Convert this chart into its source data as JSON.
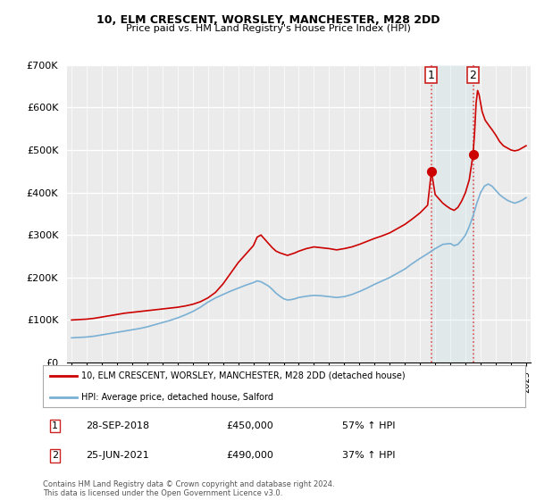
{
  "title_line1": "10, ELM CRESCENT, WORSLEY, MANCHESTER, M28 2DD",
  "title_line2": "Price paid vs. HM Land Registry's House Price Index (HPI)",
  "ylim": [
    0,
    700000
  ],
  "yticks": [
    0,
    100000,
    200000,
    300000,
    400000,
    500000,
    600000,
    700000
  ],
  "ytick_labels": [
    "£0",
    "£100K",
    "£200K",
    "£300K",
    "£400K",
    "£500K",
    "£600K",
    "£700K"
  ],
  "background_color": "#ffffff",
  "plot_bg_color": "#ebebeb",
  "grid_color": "#ffffff",
  "red_line_color": "#cc0000",
  "blue_line_color": "#7ab0d4",
  "point1_x": 2018.75,
  "point1_y": 450000,
  "point1_label": "1",
  "point1_date": "28-SEP-2018",
  "point1_price": "£450,000",
  "point1_hpi": "57% ↑ HPI",
  "point2_x": 2021.5,
  "point2_y": 490000,
  "point2_label": "2",
  "point2_date": "25-JUN-2021",
  "point2_price": "£490,000",
  "point2_hpi": "37% ↑ HPI",
  "legend_line1": "10, ELM CRESCENT, WORSLEY, MANCHESTER, M28 2DD (detached house)",
  "legend_line2": "HPI: Average price, detached house, Salford",
  "footnote": "Contains HM Land Registry data © Crown copyright and database right 2024.\nThis data is licensed under the Open Government Licence v3.0.",
  "xmin": 1995,
  "xmax": 2025
}
